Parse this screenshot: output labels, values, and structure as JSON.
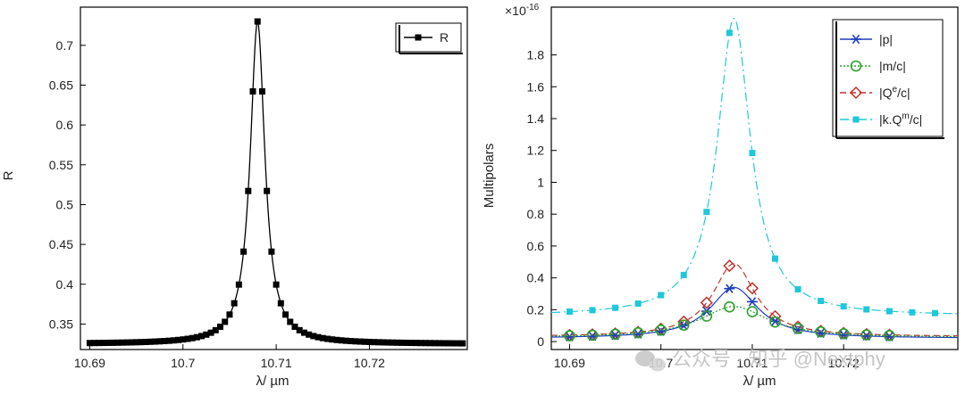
{
  "chart_data": [
    {
      "type": "line",
      "title": "",
      "xlabel": "λ/ µm",
      "ylabel": "R",
      "xlim": [
        10.689,
        10.7305
      ],
      "ylim": [
        0.318,
        0.748
      ],
      "xticks": [
        10.69,
        10.7,
        10.71,
        10.72
      ],
      "xtick_labels": [
        "10.69",
        "10.7",
        "10.71",
        "10.72"
      ],
      "yticks": [
        0.35,
        0.4,
        0.45,
        0.5,
        0.55,
        0.6,
        0.65,
        0.7
      ],
      "ytick_labels": [
        "0.35",
        "0.4",
        "0.45",
        "0.5",
        "0.55",
        "0.6",
        "0.65",
        "0.7"
      ],
      "legend_position": "top-right",
      "series": [
        {
          "name": "R",
          "color": "#000000",
          "marker": "square",
          "model": "lorentzian",
          "x_start": 10.69,
          "x_end": 10.73,
          "n_points": 81,
          "center": 10.708,
          "half_width": 0.00095,
          "baseline": 0.325,
          "peak": 0.73
        }
      ]
    },
    {
      "type": "line",
      "title": "",
      "xlabel": "λ/ µm",
      "ylabel": "Multipolars",
      "y_multiplier": "×10",
      "y_multiplier_exp": "-16",
      "xlim": [
        10.688,
        10.7325
      ],
      "ylim": [
        -0.05,
        2.1
      ],
      "xticks": [
        10.69,
        10.7,
        10.71,
        10.72
      ],
      "xtick_labels": [
        "10.69",
        "10.7",
        "10.71",
        "10.72"
      ],
      "yticks": [
        0,
        0.2,
        0.4,
        0.6,
        0.8,
        1,
        1.2,
        1.4,
        1.6,
        1.8
      ],
      "ytick_labels": [
        "0",
        "0.2",
        "0.4",
        "0.6",
        "0.8",
        "1",
        "1.2",
        "1.4",
        "1.6",
        "1.8"
      ],
      "legend_position": "top-right",
      "series": [
        {
          "name": "|p|",
          "name_main": "|p|",
          "name_sup": "",
          "name_tail": "",
          "color": "#1f3fbf",
          "marker": "asterisk",
          "dash": "none",
          "model": "lorentzian",
          "baseline": 0.02,
          "peak": 0.34,
          "center": 10.708,
          "half_width": 0.0032,
          "marker_x_start": 10.69,
          "marker_step": 0.0025,
          "marker_count": 15
        },
        {
          "name": "|m/c|",
          "name_main": "|m/c|",
          "name_sup": "",
          "name_tail": "",
          "color": "#2ca02c",
          "marker": "circle",
          "dash": "2,2",
          "model": "lorentzian",
          "baseline": 0.025,
          "peak": 0.22,
          "center": 10.708,
          "half_width": 0.0045,
          "marker_x_start": 10.69,
          "marker_step": 0.0025,
          "marker_count": 15
        },
        {
          "name": "|Qe/c|",
          "name_main": "|Q",
          "name_sup": "e",
          "name_tail": "/c|",
          "color": "#c0332b",
          "marker": "diamond",
          "dash": "7,4",
          "model": "lorentzian",
          "baseline": 0.03,
          "peak": 0.49,
          "center": 10.708,
          "half_width": 0.0028,
          "marker_x_start": 10.69,
          "marker_step": 0.0025,
          "marker_count": 15
        },
        {
          "name": "|k.Qm/c|",
          "name_main": "|k.Q",
          "name_sup": "m",
          "name_tail": "/c|",
          "color": "#1ec8d8",
          "marker": "square",
          "dash": "10,4,2,4",
          "model": "lorentzian",
          "baseline": 0.16,
          "peak": 2.03,
          "center": 10.708,
          "half_width": 0.0022,
          "marker_x_start": 10.69,
          "marker_step": 0.0025,
          "marker_count": 17
        }
      ]
    }
  ],
  "watermark": {
    "text": "公众号 · 知乎 @Nextphy"
  }
}
